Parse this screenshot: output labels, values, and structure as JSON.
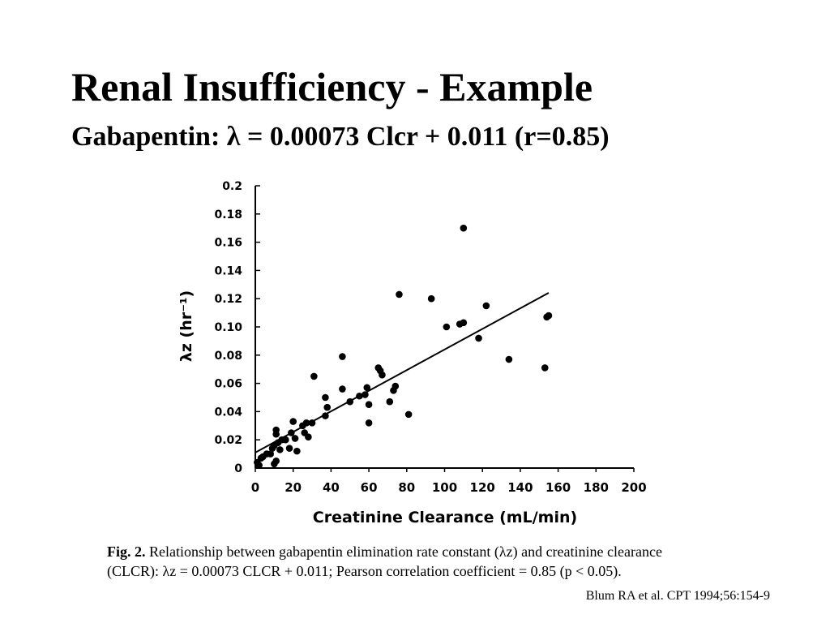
{
  "slide": {
    "title": "Renal Insufficiency - Example",
    "subtitle": "Gabapentin: λ = 0.00073 Clcr + 0.011 (r=0.85)",
    "citation": "Blum RA et al. CPT 1994;56:154-9"
  },
  "figure_caption": {
    "label": "Fig. 2.",
    "line1": "Relationship between gabapentin elimination rate constant (λz) and creatinine clearance",
    "line2": "(CLCR): λz = 0.00073 CLCR + 0.011; Pearson correlation coefficient = 0.85 (p < 0.05)."
  },
  "chart_data": {
    "type": "scatter",
    "xlabel": "Creatinine Clearance (mL/min)",
    "ylabel": "λz (hr⁻¹)",
    "xlim": [
      0,
      200
    ],
    "ylim": [
      0,
      0.2
    ],
    "x_ticks": [
      0,
      20,
      40,
      60,
      80,
      100,
      120,
      140,
      160,
      180,
      200
    ],
    "y_ticks": [
      0,
      0.02,
      0.04,
      0.06,
      0.08,
      0.1,
      0.12,
      0.14,
      0.16,
      0.18,
      0.2
    ],
    "x_tick_labels": [
      "0",
      "20",
      "40",
      "60",
      "80",
      "100",
      "120",
      "140",
      "160",
      "180",
      "200"
    ],
    "y_tick_labels": [
      "0",
      "0.02",
      "0.04",
      "0.06",
      "0.08",
      "0.10",
      "0.12",
      "0.14",
      "0.16",
      "0.18",
      "0.2"
    ],
    "grid": false,
    "fit_line": {
      "slope": 0.00073,
      "intercept": 0.011,
      "x_range": [
        0,
        155
      ]
    },
    "points": [
      {
        "x": 1,
        "y": 0.004
      },
      {
        "x": 2,
        "y": 0.002
      },
      {
        "x": 3,
        "y": 0.007
      },
      {
        "x": 4,
        "y": 0.008
      },
      {
        "x": 6,
        "y": 0.01
      },
      {
        "x": 8,
        "y": 0.01
      },
      {
        "x": 9,
        "y": 0.014
      },
      {
        "x": 10,
        "y": 0.016
      },
      {
        "x": 10,
        "y": 0.003
      },
      {
        "x": 11,
        "y": 0.005
      },
      {
        "x": 11,
        "y": 0.027
      },
      {
        "x": 11,
        "y": 0.024
      },
      {
        "x": 12,
        "y": 0.018
      },
      {
        "x": 13,
        "y": 0.013
      },
      {
        "x": 14,
        "y": 0.02
      },
      {
        "x": 16,
        "y": 0.02
      },
      {
        "x": 18,
        "y": 0.014
      },
      {
        "x": 19,
        "y": 0.025
      },
      {
        "x": 20,
        "y": 0.033
      },
      {
        "x": 21,
        "y": 0.021
      },
      {
        "x": 22,
        "y": 0.012
      },
      {
        "x": 25,
        "y": 0.03
      },
      {
        "x": 26,
        "y": 0.025
      },
      {
        "x": 27,
        "y": 0.032
      },
      {
        "x": 28,
        "y": 0.022
      },
      {
        "x": 30,
        "y": 0.032
      },
      {
        "x": 31,
        "y": 0.065
      },
      {
        "x": 37,
        "y": 0.037
      },
      {
        "x": 37,
        "y": 0.05
      },
      {
        "x": 38,
        "y": 0.043
      },
      {
        "x": 46,
        "y": 0.079
      },
      {
        "x": 46,
        "y": 0.056
      },
      {
        "x": 50,
        "y": 0.047
      },
      {
        "x": 55,
        "y": 0.051
      },
      {
        "x": 58,
        "y": 0.052
      },
      {
        "x": 59,
        "y": 0.057
      },
      {
        "x": 60,
        "y": 0.045
      },
      {
        "x": 60,
        "y": 0.032
      },
      {
        "x": 65,
        "y": 0.071
      },
      {
        "x": 66,
        "y": 0.069
      },
      {
        "x": 67,
        "y": 0.066
      },
      {
        "x": 71,
        "y": 0.047
      },
      {
        "x": 73,
        "y": 0.055
      },
      {
        "x": 74,
        "y": 0.058
      },
      {
        "x": 76,
        "y": 0.123
      },
      {
        "x": 81,
        "y": 0.038
      },
      {
        "x": 93,
        "y": 0.12
      },
      {
        "x": 101,
        "y": 0.1
      },
      {
        "x": 108,
        "y": 0.102
      },
      {
        "x": 110,
        "y": 0.103
      },
      {
        "x": 110,
        "y": 0.17
      },
      {
        "x": 118,
        "y": 0.092
      },
      {
        "x": 122,
        "y": 0.115
      },
      {
        "x": 134,
        "y": 0.077
      },
      {
        "x": 153,
        "y": 0.071
      },
      {
        "x": 154,
        "y": 0.107
      },
      {
        "x": 155,
        "y": 0.108
      }
    ]
  }
}
